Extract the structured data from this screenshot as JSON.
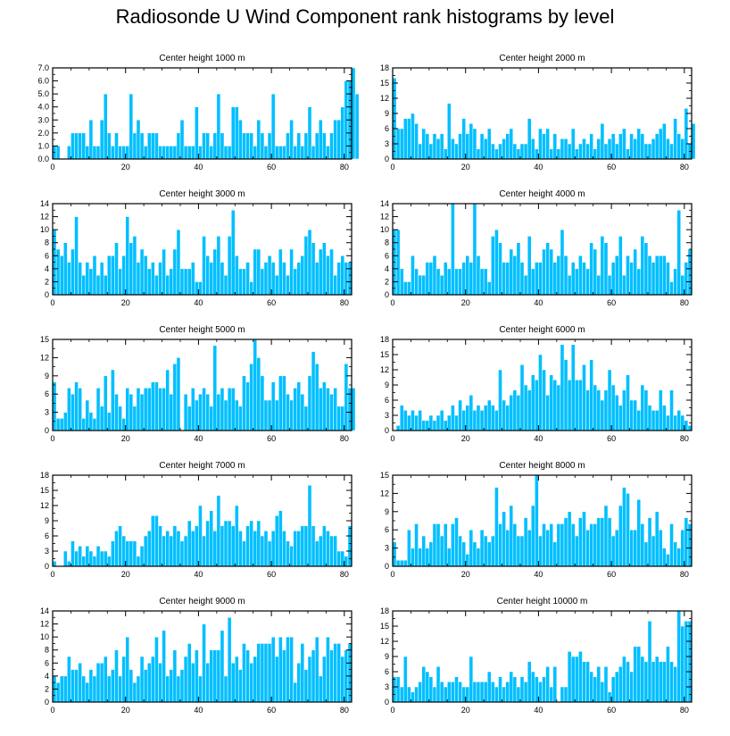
{
  "title": "Radiosonde U Wind Component rank histograms by level",
  "style": {
    "bar_color": "#00BFFF",
    "axis_color": "#000000",
    "bar_edge": "#ffffff"
  },
  "chart_data": [
    {
      "type": "bar",
      "title": "Center height 1000 m",
      "xlabel": "",
      "ylabel": "",
      "xlim": [
        0,
        82
      ],
      "ylim": [
        0,
        7
      ],
      "xticks": [
        0,
        20,
        40,
        60,
        80
      ],
      "yticks": [
        0,
        1,
        2,
        3,
        4,
        5,
        6,
        7
      ],
      "ytick_labels": [
        "0.0",
        "1.0",
        "2.0",
        "3.0",
        "4.0",
        "5.0",
        "6.0",
        "7.0"
      ],
      "categories_start": 0,
      "values": [
        1,
        1,
        0,
        0,
        1,
        2,
        2,
        2,
        2,
        1,
        3,
        1,
        1,
        3,
        5,
        2,
        1,
        2,
        1,
        1,
        1,
        5,
        2,
        3,
        2,
        1,
        2,
        2,
        2,
        1,
        1,
        1,
        1,
        1,
        2,
        3,
        1,
        1,
        1,
        4,
        1,
        2,
        2,
        1,
        2,
        5,
        2,
        1,
        1,
        4,
        4,
        3,
        2,
        2,
        2,
        1,
        3,
        2,
        1,
        2,
        5,
        1,
        1,
        1,
        2,
        3,
        1,
        2,
        1,
        2,
        4,
        1,
        2,
        3,
        2,
        1,
        2,
        3,
        3,
        4,
        6,
        6,
        7,
        5
      ]
    },
    {
      "type": "bar",
      "title": "Center height 2000 m",
      "xlabel": "",
      "ylabel": "",
      "xlim": [
        0,
        82
      ],
      "ylim": [
        0,
        18
      ],
      "xticks": [
        0,
        20,
        40,
        60,
        80
      ],
      "yticks": [
        0,
        3,
        6,
        9,
        12,
        15,
        18
      ],
      "ytick_labels": [
        "0",
        "3",
        "6",
        "9",
        "12",
        "15",
        "18"
      ],
      "categories_start": 0,
      "values": [
        16,
        6,
        6,
        8,
        8,
        9,
        7,
        3,
        6,
        5,
        3,
        5,
        4,
        5,
        2,
        11,
        4,
        3,
        5,
        8,
        5,
        7,
        6,
        2,
        5,
        4,
        6,
        3,
        2,
        3,
        4,
        5,
        6,
        3,
        2,
        3,
        3,
        8,
        4,
        2,
        6,
        5,
        6,
        2,
        5,
        2,
        4,
        4,
        3,
        6,
        2,
        3,
        4,
        3,
        5,
        2,
        4,
        7,
        3,
        4,
        5,
        3,
        5,
        6,
        2,
        5,
        4,
        6,
        5,
        3,
        3,
        4,
        5,
        6,
        7,
        4,
        3,
        8,
        5,
        4,
        10,
        3,
        7
      ]
    },
    {
      "type": "bar",
      "title": "Center height 3000 m",
      "xlabel": "",
      "ylabel": "",
      "xlim": [
        0,
        82
      ],
      "ylim": [
        0,
        14
      ],
      "xticks": [
        0,
        20,
        40,
        60,
        80
      ],
      "yticks": [
        0,
        2,
        4,
        6,
        8,
        10,
        12,
        14
      ],
      "ytick_labels": [
        "0",
        "2",
        "4",
        "6",
        "8",
        "10",
        "12",
        "14"
      ],
      "categories_start": 0,
      "values": [
        10,
        7,
        6,
        8,
        5,
        7,
        12,
        5,
        3,
        5,
        4,
        6,
        3,
        5,
        3,
        6,
        6,
        8,
        4,
        6,
        12,
        8,
        9,
        5,
        7,
        6,
        4,
        5,
        3,
        5,
        7,
        3,
        4,
        7,
        10,
        4,
        4,
        4,
        5,
        2,
        2,
        9,
        6,
        5,
        7,
        9,
        5,
        3,
        9,
        13,
        6,
        4,
        4,
        5,
        2,
        7,
        7,
        4,
        5,
        6,
        5,
        3,
        7,
        5,
        3,
        7,
        4,
        5,
        6,
        9,
        10,
        8,
        5,
        7,
        8,
        6,
        7,
        3,
        5,
        6,
        5,
        5
      ]
    },
    {
      "type": "bar",
      "title": "Center height 4000 m",
      "xlabel": "",
      "ylabel": "",
      "xlim": [
        0,
        82
      ],
      "ylim": [
        0,
        14
      ],
      "xticks": [
        0,
        20,
        40,
        60,
        80
      ],
      "yticks": [
        0,
        2,
        4,
        6,
        8,
        10,
        12,
        14
      ],
      "ytick_labels": [
        "0",
        "2",
        "4",
        "6",
        "8",
        "10",
        "12",
        "14"
      ],
      "categories_start": 0,
      "values": [
        10,
        10,
        4,
        2,
        2,
        6,
        4,
        3,
        3,
        5,
        5,
        6,
        4,
        3,
        5,
        4,
        14,
        4,
        4,
        5,
        6,
        5,
        14,
        6,
        4,
        4,
        2,
        9,
        10,
        8,
        5,
        5,
        7,
        6,
        8,
        5,
        3,
        9,
        4,
        5,
        5,
        7,
        8,
        7,
        5,
        6,
        10,
        6,
        3,
        5,
        4,
        6,
        5,
        4,
        8,
        7,
        3,
        9,
        8,
        3,
        5,
        6,
        9,
        3,
        6,
        5,
        7,
        4,
        9,
        8,
        6,
        5,
        6,
        6,
        6,
        5,
        2,
        4,
        13,
        3,
        5,
        7
      ]
    },
    {
      "type": "bar",
      "title": "Center height 5000 m",
      "xlabel": "",
      "ylabel": "",
      "xlim": [
        0,
        82
      ],
      "ylim": [
        0,
        15
      ],
      "xticks": [
        0,
        20,
        40,
        60,
        80
      ],
      "yticks": [
        0,
        3,
        6,
        9,
        12,
        15
      ],
      "ytick_labels": [
        "0",
        "3",
        "6",
        "9",
        "12",
        "15"
      ],
      "categories_start": 0,
      "values": [
        8,
        2,
        2,
        3,
        7,
        6,
        8,
        7,
        2,
        5,
        3,
        2,
        7,
        4,
        9,
        3,
        10,
        6,
        4,
        2,
        7,
        6,
        4,
        7,
        6,
        7,
        7,
        8,
        8,
        7,
        7,
        10,
        6,
        11,
        12,
        0,
        6,
        4,
        7,
        5,
        6,
        7,
        6,
        4,
        14,
        6,
        7,
        5,
        7,
        7,
        5,
        4,
        9,
        8,
        11,
        15,
        12,
        9,
        5,
        5,
        8,
        5,
        9,
        9,
        6,
        5,
        7,
        8,
        6,
        4,
        9,
        13,
        11,
        7,
        8,
        7,
        6,
        7,
        4,
        4,
        11,
        7,
        7
      ]
    },
    {
      "type": "bar",
      "title": "Center height 6000 m",
      "xlabel": "",
      "ylabel": "",
      "xlim": [
        0,
        82
      ],
      "ylim": [
        0,
        18
      ],
      "xticks": [
        0,
        20,
        40,
        60,
        80
      ],
      "yticks": [
        0,
        3,
        6,
        9,
        12,
        15,
        18
      ],
      "ytick_labels": [
        "0",
        "3",
        "6",
        "9",
        "12",
        "15",
        "18"
      ],
      "categories_start": 0,
      "values": [
        0,
        1,
        5,
        4,
        3,
        4,
        3,
        4,
        2,
        2,
        3,
        2,
        3,
        4,
        2,
        3,
        5,
        3,
        6,
        4,
        5,
        7,
        4,
        5,
        4,
        5,
        6,
        5,
        4,
        12,
        6,
        5,
        7,
        8,
        7,
        13,
        9,
        8,
        11,
        10,
        15,
        12,
        7,
        11,
        10,
        9,
        17,
        14,
        10,
        17,
        10,
        10,
        13,
        8,
        14,
        9,
        8,
        6,
        8,
        12,
        9,
        7,
        5,
        8,
        11,
        6,
        6,
        4,
        9,
        8,
        5,
        4,
        4,
        8,
        5,
        3,
        8,
        3,
        4,
        3,
        2,
        1,
        0
      ]
    },
    {
      "type": "bar",
      "title": "Center height 7000 m",
      "xlabel": "",
      "ylabel": "",
      "xlim": [
        0,
        82
      ],
      "ylim": [
        0,
        18
      ],
      "xticks": [
        0,
        20,
        40,
        60,
        80
      ],
      "yticks": [
        0,
        3,
        6,
        9,
        12,
        15,
        18
      ],
      "ytick_labels": [
        "0",
        "3",
        "6",
        "9",
        "12",
        "15",
        "18"
      ],
      "categories_start": 0,
      "values": [
        1,
        0,
        0,
        3,
        1,
        5,
        3,
        4,
        2,
        4,
        3,
        2,
        4,
        3,
        3,
        2,
        5,
        7,
        8,
        6,
        5,
        5,
        5,
        2,
        4,
        6,
        7,
        10,
        10,
        8,
        6,
        7,
        6,
        8,
        7,
        5,
        6,
        9,
        7,
        8,
        12,
        6,
        9,
        11,
        7,
        14,
        8,
        9,
        9,
        8,
        12,
        7,
        5,
        8,
        9,
        7,
        9,
        6,
        7,
        5,
        7,
        10,
        11,
        7,
        5,
        4,
        7,
        7,
        8,
        8,
        16,
        8,
        5,
        6,
        8,
        7,
        6,
        6,
        3,
        3,
        2,
        8
      ]
    },
    {
      "type": "bar",
      "title": "Center height 8000 m",
      "xlabel": "",
      "ylabel": "",
      "xlim": [
        0,
        82
      ],
      "ylim": [
        0,
        15
      ],
      "xticks": [
        0,
        20,
        40,
        60,
        80
      ],
      "yticks": [
        0,
        3,
        6,
        9,
        12,
        15
      ],
      "ytick_labels": [
        "0",
        "3",
        "6",
        "9",
        "12",
        "15"
      ],
      "categories_start": 0,
      "values": [
        4,
        1,
        1,
        1,
        6,
        3,
        7,
        3,
        5,
        3,
        4,
        7,
        7,
        5,
        7,
        3,
        7,
        8,
        5,
        4,
        2,
        6,
        4,
        3,
        6,
        5,
        4,
        5,
        13,
        7,
        9,
        6,
        10,
        7,
        5,
        5,
        8,
        6,
        10,
        15,
        5,
        7,
        6,
        7,
        4,
        7,
        7,
        8,
        9,
        7,
        5,
        8,
        9,
        6,
        7,
        7,
        8,
        8,
        10,
        8,
        5,
        6,
        10,
        13,
        12,
        6,
        6,
        11,
        7,
        4,
        8,
        5,
        9,
        6,
        3,
        2,
        7,
        4,
        3,
        6,
        8,
        7
      ]
    },
    {
      "type": "bar",
      "title": "Center height 9000 m",
      "xlabel": "",
      "ylabel": "",
      "xlim": [
        0,
        82
      ],
      "ylim": [
        0,
        14
      ],
      "xticks": [
        0,
        20,
        40,
        60,
        80
      ],
      "yticks": [
        0,
        2,
        4,
        6,
        8,
        10,
        12,
        14
      ],
      "ytick_labels": [
        "0",
        "2",
        "4",
        "6",
        "8",
        "10",
        "12",
        "14"
      ],
      "categories_start": 0,
      "values": [
        4,
        3,
        4,
        4,
        7,
        5,
        5,
        6,
        4,
        3,
        5,
        4,
        6,
        6,
        7,
        4,
        5,
        8,
        4,
        7,
        10,
        5,
        3,
        4,
        7,
        5,
        6,
        7,
        10,
        6,
        11,
        4,
        5,
        8,
        4,
        5,
        7,
        9,
        6,
        8,
        4,
        12,
        6,
        8,
        8,
        8,
        11,
        4,
        13,
        6,
        7,
        5,
        9,
        8,
        6,
        7,
        9,
        9,
        9,
        9,
        10,
        7,
        10,
        8,
        10,
        10,
        3,
        6,
        9,
        5,
        7,
        8,
        10,
        4,
        7,
        10,
        8,
        9,
        9,
        7,
        8,
        9
      ]
    },
    {
      "type": "bar",
      "title": "Center height 10000 m",
      "xlabel": "",
      "ylabel": "",
      "xlim": [
        0,
        82
      ],
      "ylim": [
        0,
        18
      ],
      "xticks": [
        0,
        20,
        40,
        60,
        80
      ],
      "yticks": [
        0,
        3,
        6,
        9,
        12,
        15,
        18
      ],
      "ytick_labels": [
        "0",
        "3",
        "6",
        "9",
        "12",
        "15",
        "18"
      ],
      "categories_start": 0,
      "values": [
        5,
        5,
        3,
        9,
        3,
        2,
        3,
        4,
        7,
        6,
        5,
        3,
        7,
        4,
        3,
        4,
        4,
        5,
        4,
        3,
        3,
        9,
        4,
        4,
        4,
        4,
        6,
        4,
        3,
        5,
        3,
        4,
        6,
        5,
        3,
        5,
        4,
        8,
        6,
        5,
        4,
        5,
        7,
        3,
        7,
        0,
        3,
        3,
        10,
        9,
        9,
        10,
        8,
        8,
        6,
        5,
        7,
        4,
        7,
        2,
        5,
        6,
        7,
        9,
        8,
        6,
        11,
        11,
        9,
        8,
        16,
        8,
        9,
        8,
        8,
        11,
        8,
        7,
        18,
        15,
        16,
        16
      ]
    }
  ]
}
